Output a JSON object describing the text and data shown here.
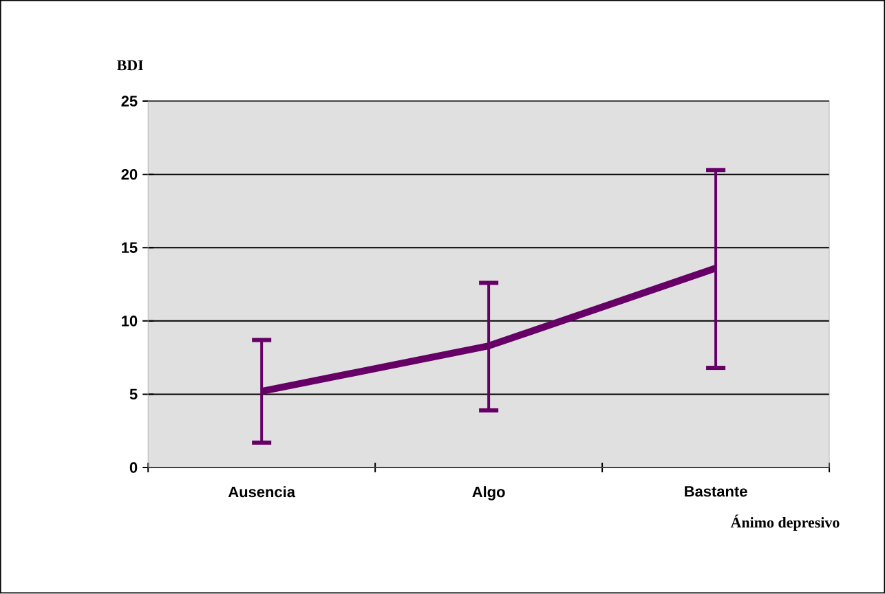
{
  "chart_data": {
    "type": "line",
    "title": "BDI",
    "xlabel": "Ánimo depresivo",
    "categories": [
      "Ausencia",
      "Algo",
      "Bastante"
    ],
    "series": [
      {
        "color": "#660066",
        "values": [
          5.2,
          8.3,
          13.6
        ],
        "errors": [
          [
            1.7,
            8.7
          ],
          [
            3.9,
            12.6
          ],
          [
            6.8,
            20.3
          ]
        ]
      }
    ],
    "ylim": [
      0,
      25
    ],
    "yticks": [
      0,
      5,
      10,
      15,
      20,
      25
    ],
    "grid": "y"
  }
}
